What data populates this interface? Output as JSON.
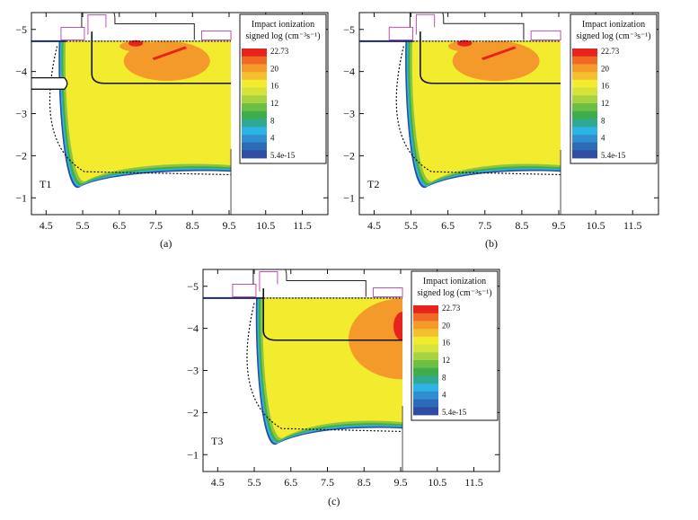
{
  "chart_data": [
    {
      "type": "heatmap",
      "panel_caption": "(a)",
      "device_label": "T1",
      "x_ticks": [
        "4.5",
        "5.5",
        "6.5",
        "7.5",
        "8.5",
        "9.5",
        "10.5",
        "11.5"
      ],
      "y_ticks": [
        "-5",
        "-4",
        "-3",
        "-2",
        "-1"
      ],
      "xlim": [
        4.1,
        12.2
      ],
      "ylim": [
        -0.6,
        -5.4
      ],
      "legend": {
        "title_line1": "Impact ionization",
        "title_line2": "signed log (cm⁻³s⁻¹)",
        "levels": [
          "22.73",
          "20",
          "16",
          "12",
          "8",
          "4",
          "5.4e-15"
        ],
        "colors": [
          "#e8221c",
          "#f39a2a",
          "#f3ec2e",
          "#8cc63f",
          "#3fae4a",
          "#2cb4e4",
          "#2d4ea2"
        ]
      }
    },
    {
      "type": "heatmap",
      "panel_caption": "(b)",
      "device_label": "T2",
      "x_ticks": [
        "4.5",
        "5.5",
        "6.5",
        "7.5",
        "8.5",
        "9.5",
        "10.5",
        "11.5"
      ],
      "y_ticks": [
        "-5",
        "-4",
        "-3",
        "-2",
        "-1"
      ],
      "xlim": [
        4.1,
        12.2
      ],
      "ylim": [
        -0.6,
        -5.4
      ],
      "legend": {
        "title_line1": "Impact ionization",
        "title_line2": "signed log (cm⁻³s⁻¹)",
        "levels": [
          "22.73",
          "20",
          "16",
          "12",
          "8",
          "4",
          "5.4e-15"
        ],
        "colors": [
          "#e8221c",
          "#f39a2a",
          "#f3ec2e",
          "#8cc63f",
          "#3fae4a",
          "#2cb4e4",
          "#2d4ea2"
        ]
      }
    },
    {
      "type": "heatmap",
      "panel_caption": "(c)",
      "device_label": "T3",
      "x_ticks": [
        "4.5",
        "5.5",
        "6.5",
        "7.5",
        "8.5",
        "9.5",
        "10.5",
        "11.5"
      ],
      "y_ticks": [
        "-5",
        "-4",
        "-3",
        "-2",
        "-1"
      ],
      "xlim": [
        4.1,
        12.2
      ],
      "ylim": [
        -0.6,
        -5.4
      ],
      "legend": {
        "title_line1": "Impact ionization",
        "title_line2": "signed log (cm⁻³s⁻¹)",
        "levels": [
          "22.73",
          "20",
          "16",
          "12",
          "8",
          "4",
          "5.4e-15"
        ],
        "colors": [
          "#e8221c",
          "#f39a2a",
          "#f3ec2e",
          "#8cc63f",
          "#3fae4a",
          "#2cb4e4",
          "#2d4ea2"
        ]
      }
    }
  ]
}
